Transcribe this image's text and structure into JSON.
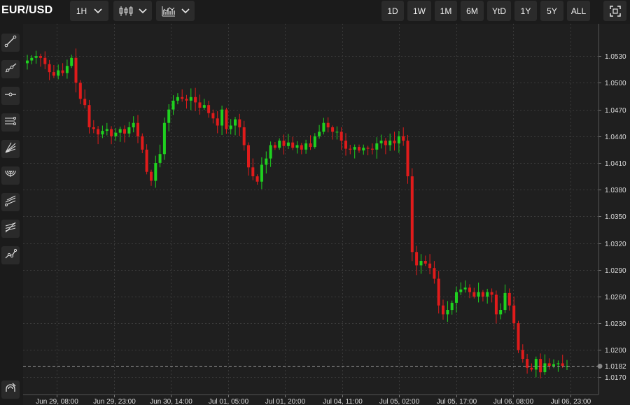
{
  "header": {
    "symbol": "EUR/USD",
    "interval": "1H",
    "ranges": [
      "1D",
      "1W",
      "1M",
      "6M",
      "YtD",
      "1Y",
      "5Y",
      "ALL"
    ]
  },
  "icons": {
    "left_tools": [
      "trend-line-icon",
      "ray-icon",
      "horizontal-line-icon",
      "parallel-channel-icon",
      "fan-icon",
      "fib-arc-icon",
      "pitchfork-icon",
      "fib-retracement-icon",
      "path-icon"
    ],
    "bottom": "magnet-icon",
    "chart_type": "candlestick-icon",
    "indicators": "indicators-icon",
    "fullscreen": "fullscreen-icon",
    "chevron": "chevron-down-icon"
  },
  "colors": {
    "up": "#1fd11f",
    "down": "#e01b1b",
    "background": "#1f1f1f",
    "grid": "#3a3a3a",
    "last_price_line": "#9a9a9a"
  },
  "chart_data": {
    "type": "candlestick",
    "title": "",
    "ylim": [
      1.015,
      1.056
    ],
    "grid": true,
    "y_ticks": [
      "1.0530",
      "1.0500",
      "1.0470",
      "1.0440",
      "1.0410",
      "1.0380",
      "1.0350",
      "1.0320",
      "1.0290",
      "1.0260",
      "1.0230",
      "1.0200",
      "1.0170"
    ],
    "x_ticks": [
      "Jun 29, 08:00",
      "Jun 29, 23:00",
      "Jun 30, 14:00",
      "Jul 01, 05:00",
      "Jul 01, 20:00",
      "Jul 04, 11:00",
      "Jul 05, 02:00",
      "Jul 05, 17:00",
      "Jul 06, 08:00",
      "Jul 06, 23:00"
    ],
    "last_price": "1.0182",
    "close_path": [
      1.0525,
      1.0528,
      1.053,
      1.0528,
      1.0521,
      1.0512,
      1.0508,
      1.0514,
      1.0511,
      1.0519,
      1.0528,
      1.05,
      1.0482,
      1.0475,
      1.045,
      1.0448,
      1.0442,
      1.0446,
      1.0448,
      1.044,
      1.0444,
      1.0448,
      1.0443,
      1.045,
      1.0455,
      1.044,
      1.0425,
      1.04,
      1.039,
      1.041,
      1.042,
      1.0455,
      1.047,
      1.048,
      1.0484,
      1.0482,
      1.048,
      1.0484,
      1.0478,
      1.0472,
      1.0475,
      1.0466,
      1.046,
      1.0452,
      1.047,
      1.0448,
      1.0452,
      1.0459,
      1.045,
      1.043,
      1.0405,
      1.0395,
      1.0389,
      1.0408,
      1.0415,
      1.043,
      1.0427,
      1.0435,
      1.0429,
      1.0433,
      1.0427,
      1.043,
      1.0425,
      1.0432,
      1.0428,
      1.044,
      1.0445,
      1.0455,
      1.045,
      1.0445,
      1.0445,
      1.0435,
      1.0426,
      1.0425,
      1.0428,
      1.0424,
      1.0427,
      1.0426,
      1.0425,
      1.0432,
      1.0435,
      1.043,
      1.0435,
      1.0432,
      1.044,
      1.0435,
      1.0395,
      1.031,
      1.0295,
      1.03,
      1.0297,
      1.0292,
      1.028,
      1.025,
      1.024,
      1.0245,
      1.0253,
      1.0265,
      1.0268,
      1.027,
      1.0265,
      1.026,
      1.0265,
      1.026,
      1.0265,
      1.0262,
      1.024,
      1.0245,
      1.0264,
      1.025,
      1.023,
      1.02,
      1.019,
      1.018,
      1.0178,
      1.019,
      1.0175,
      1.0185,
      1.0182,
      1.0184,
      1.0185,
      1.0182,
      1.0182
    ]
  }
}
